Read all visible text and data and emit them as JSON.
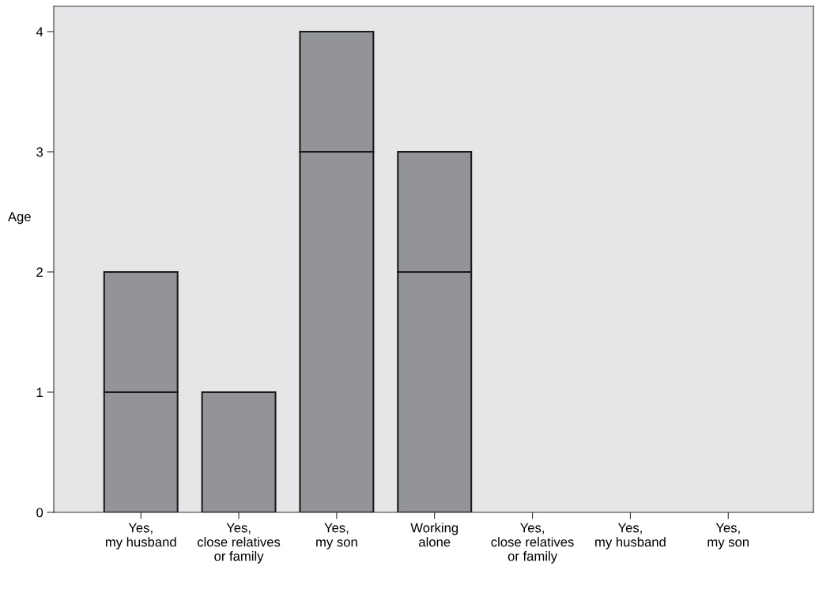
{
  "chart_data": {
    "type": "bar",
    "stacked": true,
    "ylabel": "Age",
    "categories": [
      "Yes,\nmy husband",
      "Yes,\nclose relatives\nor family",
      "Yes,\nmy son",
      "Working\nalone",
      "Yes,\nclose relatives\nor family",
      "Yes,\nmy husband",
      "Yes,\nmy son"
    ],
    "series": [
      {
        "color": "#939498",
        "values": [
          1,
          1,
          3,
          2,
          0,
          0,
          0
        ]
      },
      {
        "color": "#939498",
        "values": [
          1,
          0,
          1,
          1,
          0,
          0,
          0
        ]
      }
    ],
    "ylim": [
      0,
      4.21
    ],
    "yticks": [
      0,
      1,
      2,
      3,
      4
    ],
    "grid": false,
    "legend": false
  }
}
